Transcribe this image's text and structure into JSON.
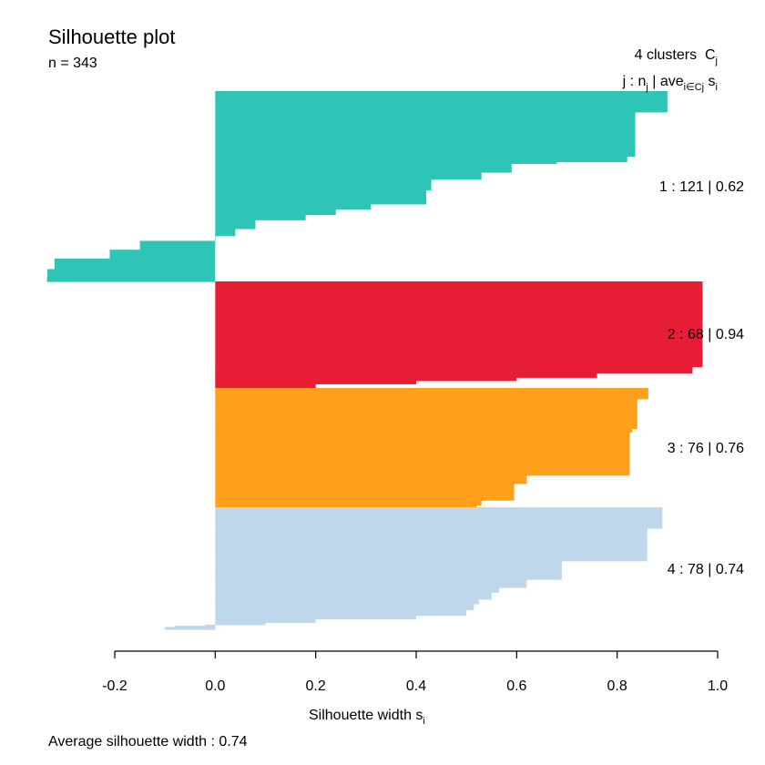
{
  "chart_data": {
    "type": "bar",
    "orientation": "horizontal",
    "title": "Silhouette plot",
    "n_label": "n = 343",
    "header": {
      "clusters": "4 clusters",
      "clusters_sym": "C",
      "clusters_sub": "j",
      "row_j": "j : n",
      "row_j_sub": "j",
      "row_ave": " | ave",
      "row_ave_sub": "i∈Cj",
      "row_s": "s",
      "row_s_sub": "i"
    },
    "xlabel": "Silhouette width s",
    "xlabel_sub": "i",
    "xlim": [
      -0.2,
      1.0
    ],
    "xticks": [
      "-0.2",
      "0.0",
      "0.2",
      "0.4",
      "0.6",
      "0.8",
      "1.0"
    ],
    "footer": "Average silhouette width :  0.74",
    "clusters": [
      {
        "label": "1 :  121  |  0.62",
        "n": 121,
        "average": 0.62,
        "color": "#2EC4B6",
        "profile": [
          [
            0.9,
            0.118
          ],
          [
            0.836,
            0.252
          ],
          [
            0.82,
            0.03
          ],
          [
            0.68,
            0.01
          ],
          [
            0.59,
            0.05
          ],
          [
            0.53,
            0.04
          ],
          [
            0.43,
            0.06
          ],
          [
            0.42,
            0.08
          ],
          [
            0.31,
            0.03
          ],
          [
            0.24,
            0.03
          ],
          [
            0.18,
            0.03
          ],
          [
            0.08,
            0.05
          ],
          [
            0.04,
            0.04
          ],
          [
            0.0,
            0.03
          ],
          [
            -0.15,
            0.05
          ],
          [
            -0.21,
            0.05
          ],
          [
            -0.32,
            0.06
          ],
          [
            -0.334,
            0.05
          ],
          [
            -0.335,
            0.02
          ]
        ]
      },
      {
        "label": "2 :  68  |  0.94",
        "n": 68,
        "average": 0.94,
        "color": "#E71D36",
        "profile": [
          [
            0.97,
            0.8
          ],
          [
            0.95,
            0.06
          ],
          [
            0.76,
            0.04
          ],
          [
            0.6,
            0.03
          ],
          [
            0.4,
            0.03
          ],
          [
            0.2,
            0.04
          ]
        ]
      },
      {
        "label": "3 :  76  |  0.76",
        "n": 76,
        "average": 0.76,
        "color": "#FF9F1C",
        "profile": [
          [
            0.862,
            0.09
          ],
          [
            0.84,
            0.25
          ],
          [
            0.83,
            0.03
          ],
          [
            0.825,
            0.36
          ],
          [
            0.62,
            0.07
          ],
          [
            0.595,
            0.14
          ],
          [
            0.53,
            0.04
          ],
          [
            0.52,
            0.02
          ]
        ]
      },
      {
        "label": "4 :  78  |  0.74",
        "n": 78,
        "average": 0.74,
        "color": "#BFD7EA",
        "profile": [
          [
            0.89,
            0.18
          ],
          [
            0.86,
            0.28
          ],
          [
            0.69,
            0.16
          ],
          [
            0.62,
            0.07
          ],
          [
            0.565,
            0.04
          ],
          [
            0.55,
            0.06
          ],
          [
            0.525,
            0.04
          ],
          [
            0.515,
            0.05
          ],
          [
            0.5,
            0.05
          ],
          [
            0.4,
            0.03
          ],
          [
            0.2,
            0.03
          ],
          [
            0.1,
            0.02
          ],
          [
            -0.02,
            0.01
          ],
          [
            -0.08,
            0.01
          ],
          [
            -0.1,
            0.02
          ]
        ]
      }
    ]
  }
}
